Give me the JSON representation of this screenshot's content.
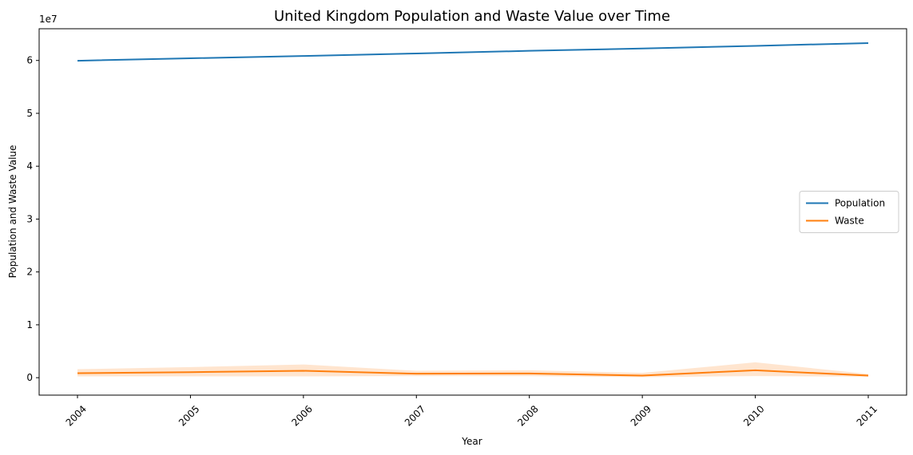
{
  "chart_data": {
    "type": "line",
    "title": "United Kingdom Population and Waste Value over Time",
    "xlabel": "Year",
    "ylabel": "Population and Waste Value",
    "y_scale_label": "1e7",
    "categories": [
      "2004",
      "2005",
      "2006",
      "2007",
      "2008",
      "2009",
      "2010",
      "2011"
    ],
    "y_ticks": [
      0,
      10000000,
      20000000,
      30000000,
      40000000,
      50000000,
      60000000
    ],
    "y_tick_labels": [
      "0",
      "1",
      "2",
      "3",
      "4",
      "5",
      "6"
    ],
    "ylim": [
      -3300000,
      66000000
    ],
    "grid": false,
    "legend_position": "center-right",
    "series": [
      {
        "name": "Population",
        "color": "#1f77b4",
        "values": [
          59950000,
          60410000,
          60850000,
          61320000,
          61820000,
          62260000,
          62760000,
          63290000
        ]
      },
      {
        "name": "Waste",
        "color": "#ff7f0e",
        "values": [
          850000,
          1050000,
          1300000,
          750000,
          800000,
          400000,
          1400000,
          400000
        ],
        "ci_lower": [
          250000,
          250000,
          250000,
          300000,
          300000,
          100000,
          300000,
          200000
        ],
        "ci_upper": [
          1600000,
          2000000,
          2500000,
          1300000,
          1400000,
          900000,
          2900000,
          700000
        ]
      }
    ]
  }
}
